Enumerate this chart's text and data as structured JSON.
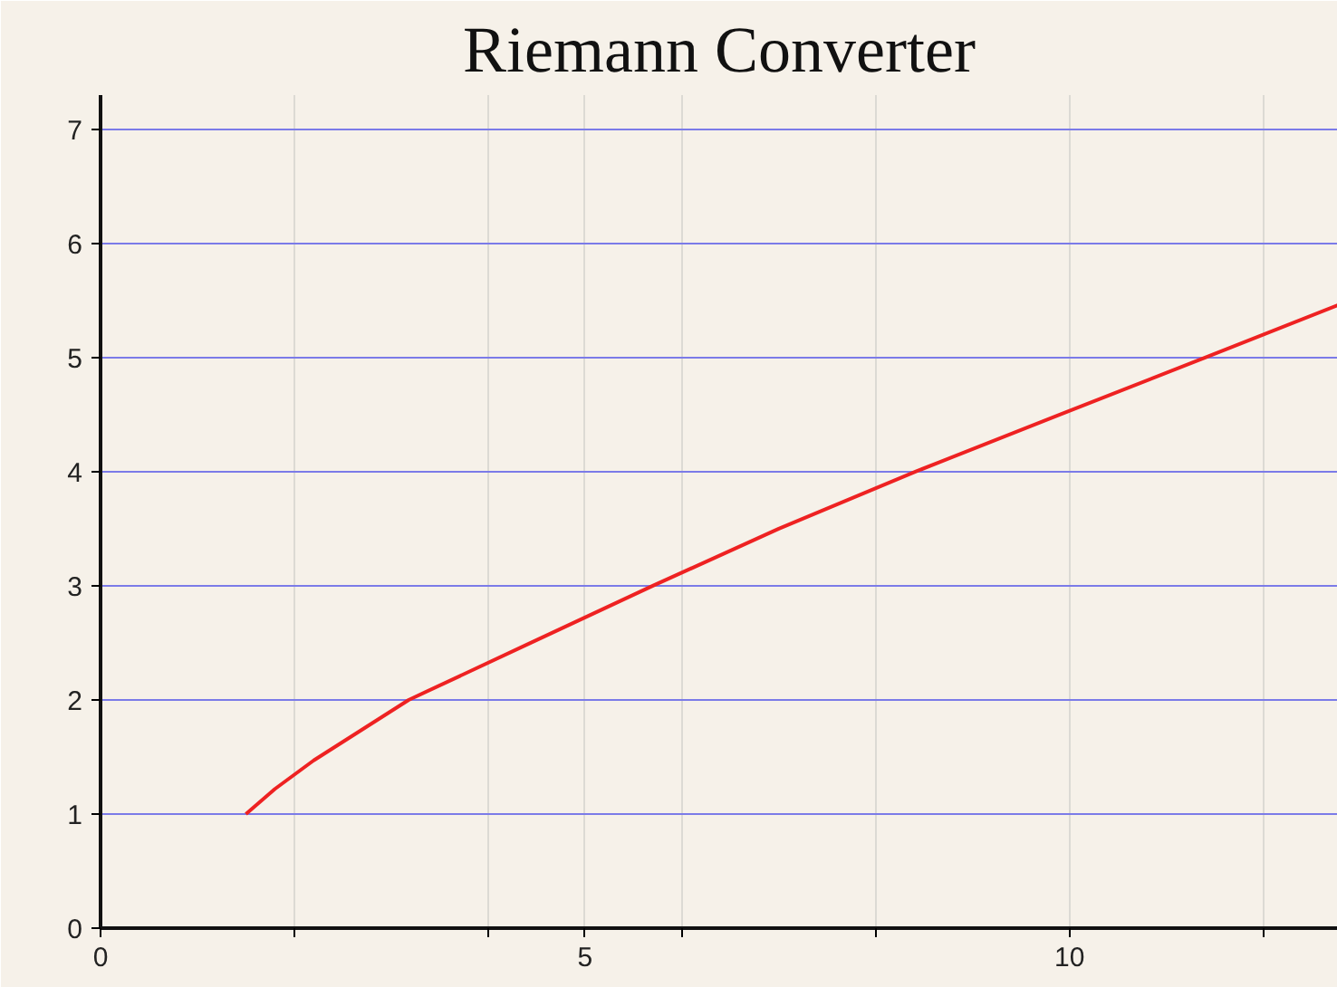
{
  "chart_data": {
    "type": "line",
    "title": "Riemann Converter",
    "x": [
      1.5,
      1.8,
      2.2,
      3.18,
      4.44,
      5.7,
      7.0,
      8.41,
      9.9,
      11.4,
      12.77
    ],
    "series": [
      {
        "color": "#ee2222",
        "values": [
          1.0,
          1.22,
          1.47,
          2.0,
          2.5,
          3.0,
          3.5,
          4.0,
          4.5,
          5.0,
          5.46
        ]
      }
    ],
    "xlim": [
      0,
      12.77
    ],
    "ylim": [
      0,
      7.3
    ],
    "xticks": [
      0,
      {
        "value": 2,
        "label": null
      },
      {
        "value": 4,
        "label": null
      },
      5,
      {
        "value": 6,
        "label": null
      },
      {
        "value": 8,
        "label": null
      },
      10,
      {
        "value": 12,
        "label": null
      }
    ],
    "yticks": [
      0,
      1,
      2,
      3,
      4,
      5,
      6,
      7
    ],
    "grid": true,
    "marker": "none",
    "line_style": "solid"
  }
}
